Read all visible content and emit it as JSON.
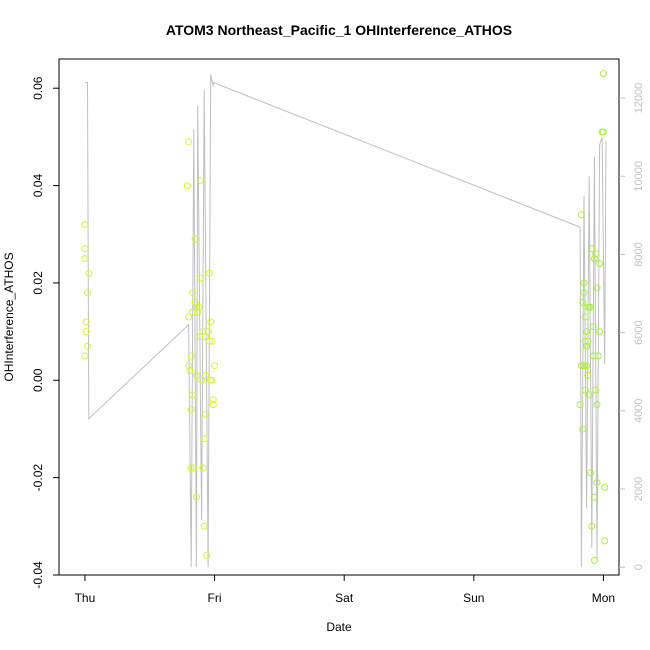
{
  "chart_data": {
    "type": "scatter",
    "title": "ATOM3 Northeast_Pacific_1 OHInterference_ATHOS",
    "xlabel": "Date",
    "ylabel": "OHInterference_ATHOS",
    "x_ticks": [
      {
        "x": 0,
        "label": "Thu"
      },
      {
        "x": 1,
        "label": "Fri"
      },
      {
        "x": 2,
        "label": "Sat"
      },
      {
        "x": 3,
        "label": "Sun"
      },
      {
        "x": 4,
        "label": "Mon"
      }
    ],
    "xlim": [
      -0.2,
      4.12
    ],
    "ylim": [
      -0.04,
      0.066
    ],
    "y_ticks": [
      {
        "v": -0.04,
        "label": "-0.04"
      },
      {
        "v": -0.02,
        "label": "-0.02"
      },
      {
        "v": 0.0,
        "label": "0.00"
      },
      {
        "v": 0.02,
        "label": "0.02"
      },
      {
        "v": 0.04,
        "label": "0.04"
      },
      {
        "v": 0.06,
        "label": "0.06"
      }
    ],
    "y2lim": [
      -200,
      13000
    ],
    "y2_ticks": [
      {
        "v": 0,
        "label": "0"
      },
      {
        "v": 2000,
        "label": "2000"
      },
      {
        "v": 4000,
        "label": "4000"
      },
      {
        "v": 6000,
        "label": "6000"
      },
      {
        "v": 8000,
        "label": "8000"
      },
      {
        "v": 10000,
        "label": "10000"
      },
      {
        "v": 12000,
        "label": "12000"
      }
    ],
    "grid": false,
    "points": [
      {
        "x": 0.0,
        "y": 0.005,
        "c": "#d8f238"
      },
      {
        "x": 0.0,
        "y": 0.025,
        "c": "#d8f238"
      },
      {
        "x": 0.0,
        "y": 0.027,
        "c": "#d8f238"
      },
      {
        "x": 0.0,
        "y": 0.032,
        "c": "#d8f238"
      },
      {
        "x": 0.01,
        "y": 0.012,
        "c": "#d8f238"
      },
      {
        "x": 0.01,
        "y": 0.01,
        "c": "#d8f238"
      },
      {
        "x": 0.02,
        "y": 0.007,
        "c": "#d8f238"
      },
      {
        "x": 0.02,
        "y": 0.018,
        "c": "#d8f238"
      },
      {
        "x": 0.03,
        "y": 0.022,
        "c": "#d8f238"
      },
      {
        "x": 0.79,
        "y": 0.04,
        "c": "#d8f238"
      },
      {
        "x": 0.8,
        "y": 0.049,
        "c": "#d8f238"
      },
      {
        "x": 0.8,
        "y": 0.013,
        "c": "#d8f238"
      },
      {
        "x": 0.8,
        "y": 0.003,
        "c": "#d8f238"
      },
      {
        "x": 0.81,
        "y": 0.002,
        "c": "#d8f238"
      },
      {
        "x": 0.82,
        "y": 0.005,
        "c": "#d8f238"
      },
      {
        "x": 0.82,
        "y": -0.006,
        "c": "#d8f238"
      },
      {
        "x": 0.82,
        "y": -0.018,
        "c": "#d8f238"
      },
      {
        "x": 0.83,
        "y": 0.018,
        "c": "#d8f238"
      },
      {
        "x": 0.83,
        "y": 0.014,
        "c": "#d8f238"
      },
      {
        "x": 0.83,
        "y": -0.003,
        "c": "#d8f238"
      },
      {
        "x": 0.84,
        "y": -0.018,
        "c": "#d8f238"
      },
      {
        "x": 0.85,
        "y": 0.029,
        "c": "#d8f238"
      },
      {
        "x": 0.85,
        "y": 0.016,
        "c": "#d8f238"
      },
      {
        "x": 0.86,
        "y": 0.015,
        "c": "#d8f238"
      },
      {
        "x": 0.86,
        "y": 0.001,
        "c": "#d8f238"
      },
      {
        "x": 0.86,
        "y": -0.024,
        "c": "#d8f238"
      },
      {
        "x": 0.87,
        "y": 0.014,
        "c": "#d8f238"
      },
      {
        "x": 0.88,
        "y": 0.015,
        "c": "#d8f238"
      },
      {
        "x": 0.89,
        "y": 0.041,
        "c": "#d8f238"
      },
      {
        "x": 0.89,
        "y": 0.021,
        "c": "#d8f238"
      },
      {
        "x": 0.89,
        "y": 0.009,
        "c": "#d8f238"
      },
      {
        "x": 0.9,
        "y": 0.0,
        "c": "#d8f238"
      },
      {
        "x": 0.91,
        "y": 0.01,
        "c": "#d8f238"
      },
      {
        "x": 0.91,
        "y": -0.018,
        "c": "#d8f238"
      },
      {
        "x": 0.92,
        "y": -0.012,
        "c": "#d8f238"
      },
      {
        "x": 0.92,
        "y": -0.03,
        "c": "#d8f238"
      },
      {
        "x": 0.93,
        "y": 0.001,
        "c": "#d8f238"
      },
      {
        "x": 0.93,
        "y": 0.009,
        "c": "#d8f238"
      },
      {
        "x": 0.93,
        "y": -0.007,
        "c": "#d8f238"
      },
      {
        "x": 0.94,
        "y": -0.036,
        "c": "#d8f238"
      },
      {
        "x": 0.95,
        "y": 0.01,
        "c": "#d8f238"
      },
      {
        "x": 0.96,
        "y": 0.008,
        "c": "#d8f238"
      },
      {
        "x": 0.96,
        "y": 0.022,
        "c": "#d8f238"
      },
      {
        "x": 0.97,
        "y": 0.012,
        "c": "#d8f238"
      },
      {
        "x": 0.97,
        "y": 0.0,
        "c": "#d8f238"
      },
      {
        "x": 0.98,
        "y": 0.0,
        "c": "#d8f238"
      },
      {
        "x": 0.99,
        "y": -0.004,
        "c": "#d8f238"
      },
      {
        "x": 0.99,
        "y": -0.005,
        "c": "#d8f238"
      },
      {
        "x": 1.0,
        "y": 0.003,
        "c": "#d8f238"
      },
      {
        "x": 0.98,
        "y": 0.008,
        "c": "#d8f238"
      },
      {
        "x": 3.82,
        "y": -0.005,
        "c": "#a8f040"
      },
      {
        "x": 3.83,
        "y": 0.034,
        "c": "#a8f040"
      },
      {
        "x": 3.83,
        "y": 0.003,
        "c": "#a8f040"
      },
      {
        "x": 3.84,
        "y": 0.016,
        "c": "#a8f040"
      },
      {
        "x": 3.84,
        "y": -0.01,
        "c": "#a8f040"
      },
      {
        "x": 3.85,
        "y": 0.02,
        "c": "#a8f040"
      },
      {
        "x": 3.85,
        "y": 0.003,
        "c": "#a8f040"
      },
      {
        "x": 3.85,
        "y": 0.018,
        "c": "#a8f040"
      },
      {
        "x": 3.86,
        "y": 0.008,
        "c": "#a8f040"
      },
      {
        "x": 3.86,
        "y": 0.013,
        "c": "#a8f040"
      },
      {
        "x": 3.86,
        "y": -0.002,
        "c": "#a8f040"
      },
      {
        "x": 3.87,
        "y": 0.01,
        "c": "#a8f040"
      },
      {
        "x": 3.87,
        "y": 0.007,
        "c": "#a8f040"
      },
      {
        "x": 3.87,
        "y": 0.003,
        "c": "#a8f040"
      },
      {
        "x": 3.88,
        "y": 0.015,
        "c": "#a8f040"
      },
      {
        "x": 3.88,
        "y": 0.008,
        "c": "#a8f040"
      },
      {
        "x": 3.88,
        "y": 0.001,
        "c": "#a8f040"
      },
      {
        "x": 3.89,
        "y": 0.015,
        "c": "#a8f040"
      },
      {
        "x": 3.89,
        "y": -0.003,
        "c": "#a8f040"
      },
      {
        "x": 3.9,
        "y": 0.015,
        "c": "#a8f040"
      },
      {
        "x": 3.9,
        "y": -0.019,
        "c": "#a8f040"
      },
      {
        "x": 3.91,
        "y": -0.03,
        "c": "#a8f040"
      },
      {
        "x": 3.91,
        "y": 0.027,
        "c": "#a8f040"
      },
      {
        "x": 3.92,
        "y": 0.011,
        "c": "#a8f040"
      },
      {
        "x": 3.92,
        "y": 0.005,
        "c": "#a8f040"
      },
      {
        "x": 3.93,
        "y": 0.025,
        "c": "#a8f040"
      },
      {
        "x": 3.93,
        "y": -0.024,
        "c": "#a8f040"
      },
      {
        "x": 3.93,
        "y": -0.037,
        "c": "#a8f040"
      },
      {
        "x": 3.94,
        "y": 0.026,
        "c": "#a8f040"
      },
      {
        "x": 3.94,
        "y": -0.002,
        "c": "#a8f040"
      },
      {
        "x": 3.95,
        "y": 0.019,
        "c": "#a8f040"
      },
      {
        "x": 3.95,
        "y": -0.005,
        "c": "#a8f040"
      },
      {
        "x": 3.95,
        "y": -0.021,
        "c": "#a8f040"
      },
      {
        "x": 3.96,
        "y": 0.005,
        "c": "#a8f040"
      },
      {
        "x": 3.97,
        "y": 0.024,
        "c": "#a8f040"
      },
      {
        "x": 3.97,
        "y": 0.01,
        "c": "#a8f040"
      },
      {
        "x": 3.99,
        "y": 0.051,
        "c": "#a8f040"
      },
      {
        "x": 4.0,
        "y": 0.051,
        "c": "#a8f040"
      },
      {
        "x": 4.0,
        "y": 0.063,
        "c": "#a8f040"
      },
      {
        "x": 4.01,
        "y": -0.022,
        "c": "#a8f040"
      },
      {
        "x": 4.01,
        "y": -0.033,
        "c": "#a8f040"
      }
    ],
    "line": {
      "axis": "right",
      "color": "#bfbfbf",
      "points": [
        [
          0.0,
          12400
        ],
        [
          0.02,
          12400
        ],
        [
          0.03,
          3800
        ],
        [
          0.8,
          6200
        ],
        [
          0.82,
          0
        ],
        [
          0.84,
          11200
        ],
        [
          0.86,
          0
        ],
        [
          0.87,
          11800
        ],
        [
          0.9,
          1200
        ],
        [
          0.92,
          12200
        ],
        [
          0.95,
          0
        ],
        [
          0.97,
          12600
        ],
        [
          0.99,
          12300
        ],
        [
          0.99,
          12400
        ],
        [
          3.82,
          8700
        ],
        [
          3.83,
          0
        ],
        [
          3.85,
          9500
        ],
        [
          3.87,
          1500
        ],
        [
          3.89,
          10000
        ],
        [
          3.91,
          500
        ],
        [
          3.93,
          10500
        ],
        [
          3.95,
          200
        ],
        [
          3.97,
          10800
        ],
        [
          3.99,
          11000
        ],
        [
          4.01,
          5200
        ],
        [
          4.02,
          10900
        ]
      ]
    }
  }
}
